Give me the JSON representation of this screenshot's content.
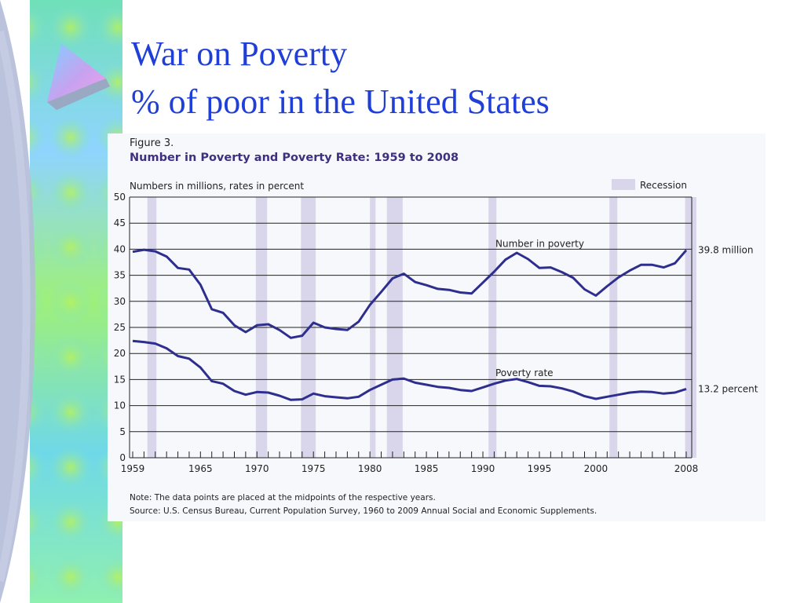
{
  "slide": {
    "title_line1": "War on Poverty",
    "title_line2": "% of poor in the United States"
  },
  "figure": {
    "label": "Figure 3.",
    "title": "Number in Poverty and Poverty Rate: 1959 to 2008",
    "units_note": "Numbers in millions, rates in percent",
    "legend_recession": "Recession",
    "note": "Note:  The data points are placed at the midpoints of the respective years.",
    "source": "Source:  U.S. Census Bureau, Current Population Survey, 1960 to 2009 Annual Social and Economic Supplements."
  },
  "colors": {
    "title": "#1f3fd8",
    "figure_title": "#3f2f7f",
    "line": "#2e2e8f",
    "recession": "#d9d6ec",
    "panel": "#f7f8fc"
  },
  "chart_data": {
    "type": "line",
    "xlim": [
      1959,
      2008
    ],
    "ylim": [
      0,
      50
    ],
    "grid": true,
    "yticks": [
      "0",
      "5",
      "10",
      "15",
      "20",
      "25",
      "30",
      "35",
      "40",
      "45",
      "50"
    ],
    "xtick_labels": [
      {
        "year": 1959,
        "label": "1959"
      },
      {
        "year": 1965,
        "label": "1965"
      },
      {
        "year": 1970,
        "label": "1970"
      },
      {
        "year": 1975,
        "label": "1975"
      },
      {
        "year": 1980,
        "label": "1980"
      },
      {
        "year": 1985,
        "label": "1985"
      },
      {
        "year": 1990,
        "label": "1990"
      },
      {
        "year": 1995,
        "label": "1995"
      },
      {
        "year": 2000,
        "label": "2000"
      },
      {
        "year": 2008,
        "label": "2008"
      }
    ],
    "recessions": [
      [
        1960.3,
        1961.1
      ],
      [
        1969.9,
        1970.9
      ],
      [
        1973.9,
        1975.2
      ],
      [
        1980.0,
        1980.5
      ],
      [
        1981.5,
        1982.9
      ],
      [
        1990.5,
        1991.2
      ],
      [
        2001.2,
        2001.9
      ],
      [
        2007.9,
        2008.9
      ]
    ],
    "years": [
      1959,
      1960,
      1961,
      1962,
      1963,
      1964,
      1965,
      1966,
      1967,
      1968,
      1969,
      1970,
      1971,
      1972,
      1973,
      1974,
      1975,
      1976,
      1977,
      1978,
      1979,
      1980,
      1981,
      1982,
      1983,
      1984,
      1985,
      1986,
      1987,
      1988,
      1989,
      1990,
      1991,
      1992,
      1993,
      1994,
      1995,
      1996,
      1997,
      1998,
      1999,
      2000,
      2001,
      2002,
      2003,
      2004,
      2005,
      2006,
      2007,
      2008
    ],
    "series": [
      {
        "name": "Number in poverty",
        "end_label": "39.8 million",
        "values": [
          39.5,
          39.9,
          39.6,
          38.6,
          36.4,
          36.1,
          33.2,
          28.5,
          27.8,
          25.4,
          24.1,
          25.4,
          25.6,
          24.5,
          23.0,
          23.4,
          25.9,
          25.0,
          24.7,
          24.5,
          26.1,
          29.3,
          31.8,
          34.4,
          35.3,
          33.7,
          33.1,
          32.4,
          32.2,
          31.7,
          31.5,
          33.6,
          35.7,
          38.0,
          39.3,
          38.1,
          36.4,
          36.5,
          35.6,
          34.5,
          32.3,
          31.1,
          32.9,
          34.6,
          35.9,
          37.0,
          37.0,
          36.5,
          37.3,
          39.8
        ]
      },
      {
        "name": "Poverty rate",
        "end_label": "13.2 percent",
        "values": [
          22.4,
          22.2,
          21.9,
          21.0,
          19.5,
          19.0,
          17.3,
          14.7,
          14.2,
          12.8,
          12.1,
          12.6,
          12.5,
          11.9,
          11.1,
          11.2,
          12.3,
          11.8,
          11.6,
          11.4,
          11.7,
          13.0,
          14.0,
          15.0,
          15.2,
          14.4,
          14.0,
          13.6,
          13.4,
          13.0,
          12.8,
          13.5,
          14.2,
          14.8,
          15.1,
          14.5,
          13.8,
          13.7,
          13.3,
          12.7,
          11.8,
          11.3,
          11.7,
          12.1,
          12.5,
          12.7,
          12.6,
          12.3,
          12.5,
          13.2
        ]
      }
    ]
  }
}
